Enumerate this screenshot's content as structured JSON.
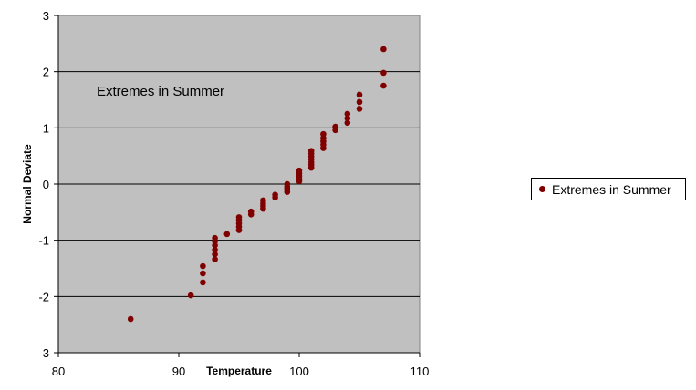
{
  "chart_data": {
    "type": "scatter",
    "title": "",
    "annotation": "Extremes in Summer",
    "xlabel": "Temperature",
    "ylabel": "Normal Deviate",
    "xlim": [
      80,
      110
    ],
    "ylim": [
      -3,
      3
    ],
    "xticks": [
      "80",
      "90",
      "100",
      "110"
    ],
    "yticks": [
      "-3",
      "-2",
      "-1",
      "0",
      "1",
      "2",
      "3"
    ],
    "grid": "horizontal",
    "plot_background": "#c0c0c0",
    "legend_position": "right",
    "series": [
      {
        "name": "Extremes in Summer",
        "color": "#800000",
        "points": [
          [
            86,
            -2.4
          ],
          [
            91,
            -1.98
          ],
          [
            92,
            -1.75
          ],
          [
            92,
            -1.59
          ],
          [
            92,
            -1.46
          ],
          [
            93,
            -1.34
          ],
          [
            93,
            -1.25
          ],
          [
            93,
            -1.17
          ],
          [
            93,
            -1.09
          ],
          [
            93,
            -1.02
          ],
          [
            93,
            -0.96
          ],
          [
            94,
            -0.89
          ],
          [
            95,
            -0.82
          ],
          [
            95,
            -0.76
          ],
          [
            95,
            -0.7
          ],
          [
            95,
            -0.64
          ],
          [
            95,
            -0.59
          ],
          [
            96,
            -0.54
          ],
          [
            96,
            -0.49
          ],
          [
            97,
            -0.44
          ],
          [
            97,
            -0.39
          ],
          [
            97,
            -0.34
          ],
          [
            97,
            -0.29
          ],
          [
            98,
            -0.24
          ],
          [
            98,
            -0.19
          ],
          [
            99,
            -0.14
          ],
          [
            99,
            -0.09
          ],
          [
            99,
            -0.05
          ],
          [
            99,
            0.0
          ],
          [
            100,
            0.05
          ],
          [
            100,
            0.09
          ],
          [
            100,
            0.14
          ],
          [
            100,
            0.19
          ],
          [
            100,
            0.24
          ],
          [
            101,
            0.29
          ],
          [
            101,
            0.34
          ],
          [
            101,
            0.39
          ],
          [
            101,
            0.44
          ],
          [
            101,
            0.49
          ],
          [
            101,
            0.54
          ],
          [
            101,
            0.59
          ],
          [
            102,
            0.64
          ],
          [
            102,
            0.7
          ],
          [
            102,
            0.76
          ],
          [
            102,
            0.82
          ],
          [
            102,
            0.89
          ],
          [
            103,
            0.96
          ],
          [
            103,
            1.02
          ],
          [
            104,
            1.09
          ],
          [
            104,
            1.17
          ],
          [
            104,
            1.25
          ],
          [
            105,
            1.34
          ],
          [
            105,
            1.46
          ],
          [
            105,
            1.59
          ],
          [
            107,
            1.75
          ],
          [
            107,
            1.98
          ],
          [
            107,
            2.4
          ]
        ]
      }
    ]
  }
}
